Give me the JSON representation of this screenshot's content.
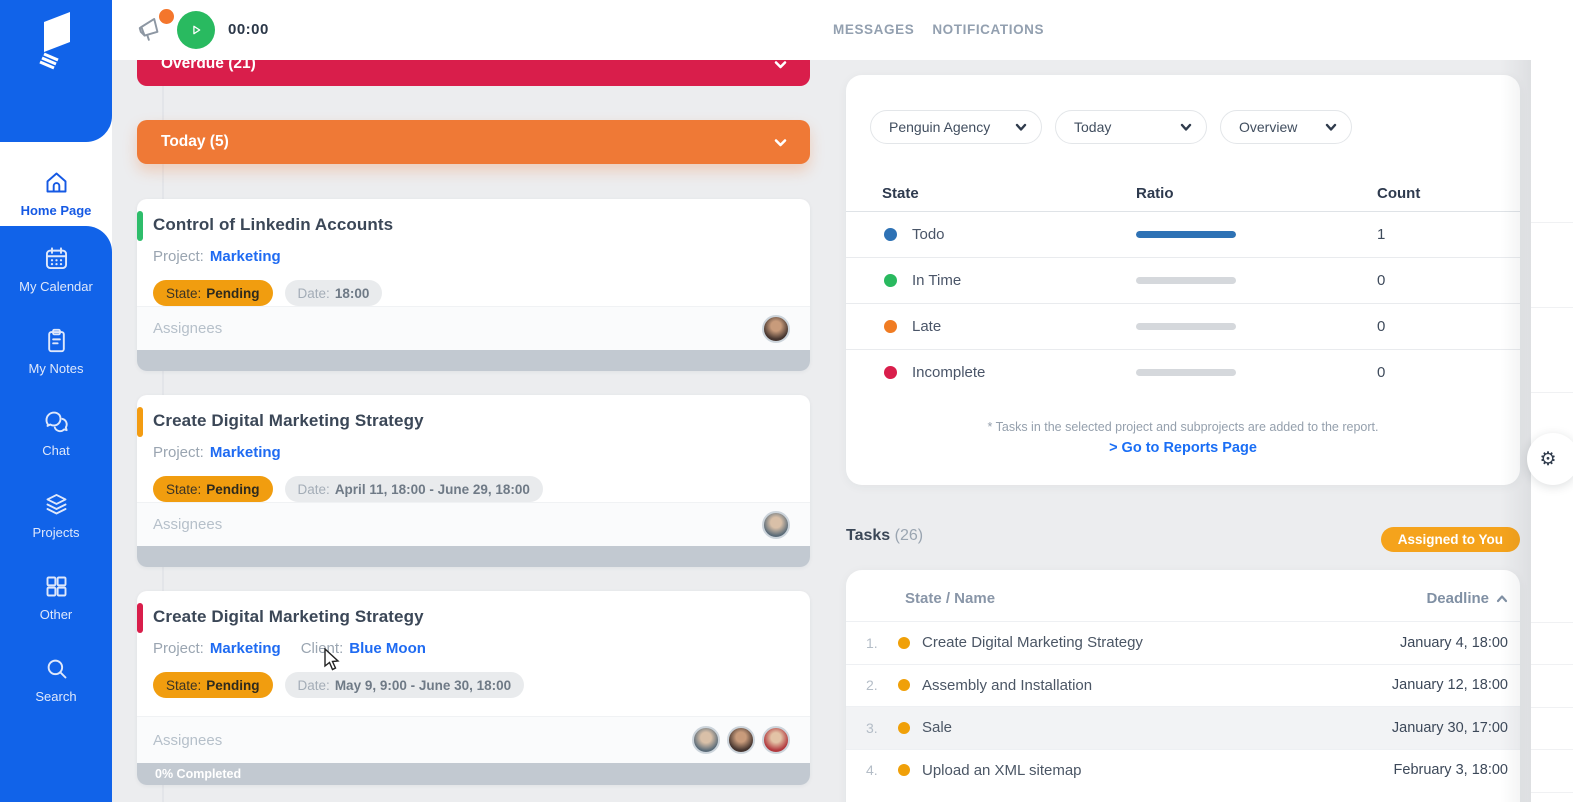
{
  "header": {
    "timer": "00:00",
    "messages": "MESSAGES",
    "notifications": "NOTIFICATIONS"
  },
  "sidebar": {
    "items": [
      {
        "label": "Home Page",
        "icon": "home",
        "active": true
      },
      {
        "label": "My Calendar",
        "icon": "calendar",
        "active": false
      },
      {
        "label": "My Notes",
        "icon": "notes",
        "active": false
      },
      {
        "label": "Chat",
        "icon": "chat",
        "active": false
      },
      {
        "label": "Projects",
        "icon": "projects",
        "active": false
      },
      {
        "label": "Other",
        "icon": "grid",
        "active": false
      },
      {
        "label": "Search",
        "icon": "search",
        "active": false
      }
    ]
  },
  "board": {
    "sections": [
      {
        "label": "Overdue (21)",
        "color": "#d91e4b"
      },
      {
        "label": "Today (5)",
        "color": "#ef7936"
      }
    ],
    "labels": {
      "project": "Project:",
      "client": "Client:",
      "state": "State:",
      "date": "Date:",
      "assignees": "Assignees"
    },
    "cards": [
      {
        "accent": "#2ebd6b",
        "title": "Control of Linkedin Accounts",
        "project": "Marketing",
        "client": null,
        "state": "Pending",
        "date": "18:00",
        "avatars": [
          "a1"
        ],
        "progress": null
      },
      {
        "accent": "#f39c12",
        "title": "Create Digital Marketing Strategy",
        "project": "Marketing",
        "client": null,
        "state": "Pending",
        "date": "April 11, 18:00 - June 29, 18:00",
        "avatars": [
          "a2"
        ],
        "progress": null
      },
      {
        "accent": "#d91e4b",
        "title": "Create Digital Marketing Strategy",
        "project": "Marketing",
        "client": "Blue Moon",
        "state": "Pending",
        "date": "May 9, 9:00 - June 30, 18:00",
        "avatars": [
          "a2",
          "a1",
          "a3"
        ],
        "progress": "0% Completed"
      }
    ]
  },
  "report": {
    "filters": [
      {
        "value": "Penguin Agency"
      },
      {
        "value": "Today"
      },
      {
        "value": "Overview"
      }
    ],
    "columns": [
      "State",
      "Ratio",
      "Count"
    ],
    "rows": [
      {
        "label": "Todo",
        "color": "#2e72b5",
        "ratio": 1,
        "count": "1"
      },
      {
        "label": "In Time",
        "color": "#29b95f",
        "ratio": 0,
        "count": "0"
      },
      {
        "label": "Late",
        "color": "#f07c23",
        "ratio": 0,
        "count": "0"
      },
      {
        "label": "Incomplete",
        "color": "#d91e4b",
        "ratio": 0,
        "count": "0"
      }
    ],
    "note": "* Tasks in the selected project and subprojects are added to the report.",
    "link": "> Go to Reports Page"
  },
  "tasks": {
    "title": "Tasks",
    "count": "(26)",
    "badge": "Assigned to You",
    "col_name": "State / Name",
    "col_deadline": "Deadline",
    "rows": [
      {
        "num": "1.",
        "name": "Create Digital Marketing Strategy",
        "deadline": "January 4, 18:00",
        "highlight": false
      },
      {
        "num": "2.",
        "name": "Assembly and Installation",
        "deadline": "January 12, 18:00",
        "highlight": false
      },
      {
        "num": "3.",
        "name": "Sale",
        "deadline": "January 30, 17:00",
        "highlight": true
      },
      {
        "num": "4.",
        "name": "Upload an XML sitemap",
        "deadline": "February 3, 18:00",
        "highlight": false
      }
    ]
  }
}
